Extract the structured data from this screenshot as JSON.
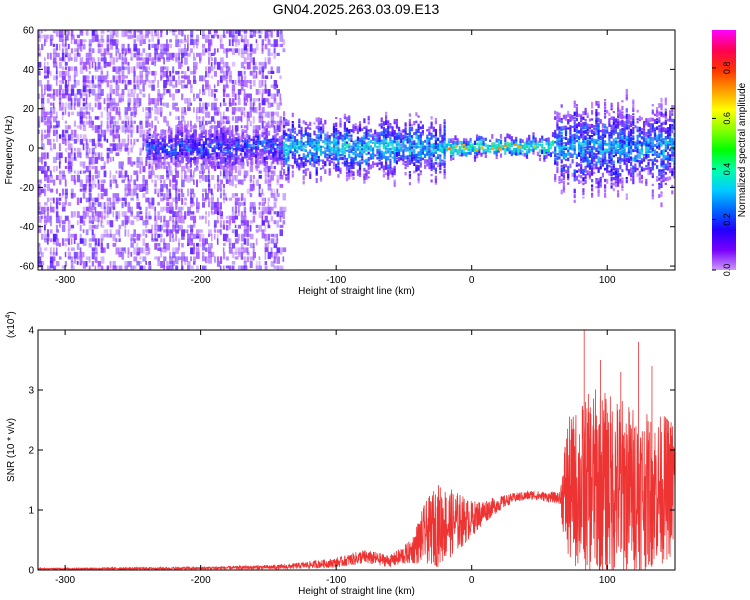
{
  "title": "GN04.2025.263.03.09.E13",
  "colors": {
    "line": "#ee3333",
    "spectral_base": "#7a1fff",
    "spectral_light": "#d9b8ff",
    "colorbar": [
      "#ff00ff",
      "#ff0055",
      "#ff3300",
      "#ff9900",
      "#ffff00",
      "#88ff00",
      "#00ff00",
      "#00ffaa",
      "#00ccff",
      "#0066ff",
      "#2200ff",
      "#7700ff",
      "#cc99ff"
    ]
  },
  "colorbar": {
    "label": "Normalized spectral amplitude",
    "ticks": [
      0.0,
      0.2,
      0.4,
      0.6,
      0.8
    ],
    "tick_labels": [
      "0.0",
      "0.2",
      "0.4",
      "0.6",
      "0.8"
    ],
    "range": [
      0.0,
      0.95
    ]
  },
  "chart_data": [
    {
      "type": "heatmap",
      "title": "GN04.2025.263.03.09.E13",
      "xlabel": "Height of straight line (km)",
      "ylabel": "Frequency (Hz)",
      "xlim": [
        -320,
        150
      ],
      "ylim": [
        -62,
        60
      ],
      "x_ticks": [
        -300,
        -200,
        -100,
        0,
        100
      ],
      "x_tick_labels": [
        "-300",
        "-200",
        "-100",
        "0",
        "100"
      ],
      "y_ticks": [
        -60,
        -40,
        -20,
        0,
        20,
        40,
        60
      ],
      "y_tick_labels": [
        "-60",
        "-40",
        "-20",
        "0",
        "20",
        "40",
        "60"
      ],
      "noise_region_x": [
        -320,
        -145
      ],
      "band_center_hz": 0,
      "bright_segment_x": [
        -20,
        60
      ],
      "bright_segment_peak_amplitude": 0.85
    },
    {
      "type": "line",
      "xlabel": "Height of straight line (km)",
      "ylabel": "SNR (10 * v/v)",
      "y_multiplier_label": "(x10",
      "y_multiplier_exp": "4",
      "xlim": [
        -320,
        150
      ],
      "ylim": [
        0,
        4
      ],
      "x_ticks": [
        -300,
        -200,
        -100,
        0,
        100
      ],
      "x_tick_labels": [
        "-300",
        "-200",
        "-100",
        "0",
        "100"
      ],
      "y_ticks": [
        0,
        1,
        2,
        3,
        4
      ],
      "y_tick_labels": [
        "0",
        "1",
        "2",
        "3",
        "4"
      ],
      "envelope_x": [
        -320,
        -200,
        -140,
        -100,
        -80,
        -60,
        -45,
        -35,
        -25,
        -10,
        0,
        15,
        30,
        45,
        55,
        65,
        70,
        90,
        110,
        130,
        150
      ],
      "envelope_mean": [
        0.02,
        0.03,
        0.05,
        0.12,
        0.22,
        0.15,
        0.3,
        0.6,
        0.75,
        0.8,
        0.85,
        1.05,
        1.2,
        1.25,
        1.22,
        1.2,
        1.3,
        1.45,
        1.4,
        1.3,
        1.4
      ],
      "envelope_spread": [
        0.01,
        0.02,
        0.04,
        0.08,
        0.12,
        0.1,
        0.2,
        0.5,
        0.7,
        0.5,
        0.3,
        0.15,
        0.08,
        0.08,
        0.08,
        0.1,
        1.2,
        1.6,
        1.5,
        1.3,
        1.2
      ],
      "peaks": [
        [
          83,
          4.0
        ],
        [
          123,
          3.8
        ],
        [
          95,
          3.5
        ],
        [
          133,
          3.4
        ],
        [
          110,
          3.3
        ]
      ]
    }
  ]
}
